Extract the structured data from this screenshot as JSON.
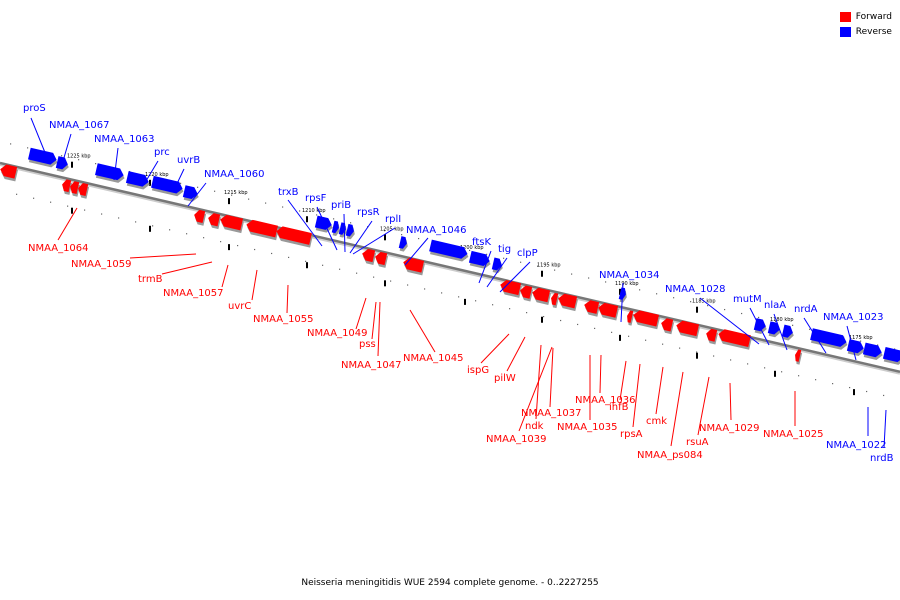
{
  "title": "Neisseria meningitidis WUE 2594 complete genome. - 0..2227255",
  "colors": {
    "forward": "#ff0000",
    "reverse": "#0000ff",
    "backbone": "#777777"
  },
  "legend": [
    {
      "label": "Forward",
      "strand": "forward"
    },
    {
      "label": "Reverse",
      "strand": "reverse"
    }
  ],
  "ticks": [
    "1225 kbp",
    "1220 kbp",
    "1215 kbp",
    "1210 kbp",
    "1205 kbp",
    "1200 kbp",
    "1195 kbp",
    "1190 kbp",
    "1185 kbp",
    "1180 kbp",
    "1175 kbp"
  ],
  "reverse_genes": [
    "proS",
    "NMAA_1067",
    "NMAA_1063",
    "prc",
    "uvrB",
    "NMAA_1060",
    "trxB",
    "rpsF",
    "priB",
    "rpsR",
    "rplI",
    "NMAA_1046",
    "ftsK",
    "tig",
    "clpP",
    "NMAA_1034",
    "NMAA_1028",
    "mutM",
    "nlaA",
    "nrdA",
    "NMAA_1023",
    "NMAA_1022",
    "nrdB"
  ],
  "forward_genes": [
    "NMAA_1064",
    "NMAA_1059",
    "trmB",
    "NMAA_1057",
    "uvrC",
    "NMAA_1055",
    "NMAA_1049",
    "pss",
    "NMAA_1047",
    "NMAA_1045",
    "ispG",
    "pilW",
    "NMAA_1039",
    "NMAA_1037",
    "ndk",
    "NMAA_1036",
    "NMAA_1035",
    "ihfB",
    "rpsA",
    "cmk",
    "NMAA_ps084",
    "rsuA",
    "NMAA_1029",
    "NMAA_1025"
  ]
}
